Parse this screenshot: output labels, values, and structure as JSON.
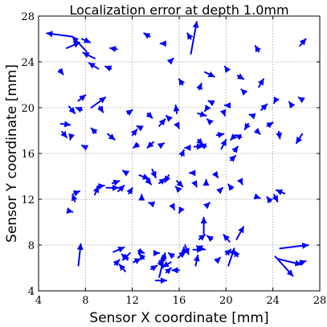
{
  "chart_data": {
    "type": "quiver",
    "title": "Localization error at depth 1.0mm",
    "xlabel": "Sensor X coordinate [mm]",
    "ylabel": "Sensor Y coordinate [mm]",
    "xlim": [
      4,
      28
    ],
    "ylim": [
      4,
      28
    ],
    "x_ticks": [
      4,
      8,
      12,
      16,
      20,
      24,
      28
    ],
    "y_ticks": [
      4,
      8,
      12,
      16,
      20,
      24,
      28
    ],
    "grid": true,
    "arrow_color": "#0000ff",
    "arrows": [
      {
        "x": 6.9,
        "y": 26.2,
        "u": -2.2,
        "v": 0.3
      },
      {
        "x": 6.4,
        "y": 25.2,
        "u": 1.1,
        "v": 0.5
      },
      {
        "x": 8.1,
        "y": 24.9,
        "u": -1.2,
        "v": 1.3
      },
      {
        "x": 7.7,
        "y": 26.0,
        "u": 0.7,
        "v": -0.3
      },
      {
        "x": 8.8,
        "y": 24.3,
        "u": -1.0,
        "v": 0.5
      },
      {
        "x": 5.8,
        "y": 23.3,
        "u": 0.3,
        "v": -0.4
      },
      {
        "x": 9.1,
        "y": 23.4,
        "u": -0.8,
        "v": 0.5
      },
      {
        "x": 10.2,
        "y": 23.4,
        "u": -0.5,
        "v": 0.2
      },
      {
        "x": 10.7,
        "y": 25.1,
        "u": -0.6,
        "v": 0.1
      },
      {
        "x": 14.5,
        "y": 25.6,
        "u": -0.1,
        "v": 0.0
      },
      {
        "x": 17.0,
        "y": 24.7,
        "u": 0.5,
        "v": 2.8
      },
      {
        "x": 17.0,
        "y": 26.0,
        "u": -0.3,
        "v": 0.5
      },
      {
        "x": 13.5,
        "y": 26.2,
        "u": -0.5,
        "v": 0.3
      },
      {
        "x": 16.3,
        "y": 22.0,
        "u": -0.3,
        "v": 0.5
      },
      {
        "x": 15.8,
        "y": 19.5,
        "u": -0.1,
        "v": 0.7
      },
      {
        "x": 15.3,
        "y": 24.1,
        "u": 0.2,
        "v": 0.2
      },
      {
        "x": 17.7,
        "y": 21.6,
        "u": 0.2,
        "v": 0.5
      },
      {
        "x": 18.2,
        "y": 23.1,
        "u": 0.8,
        "v": -0.4
      },
      {
        "x": 20.1,
        "y": 23.3,
        "u": -0.2,
        "v": 0.3
      },
      {
        "x": 21.0,
        "y": 22.8,
        "u": 0.5,
        "v": -0.3
      },
      {
        "x": 21.6,
        "y": 21.3,
        "u": -0.3,
        "v": 0.3
      },
      {
        "x": 22.8,
        "y": 24.9,
        "u": -0.3,
        "v": 0.5
      },
      {
        "x": 22.8,
        "y": 21.8,
        "u": 0.4,
        "v": 0.7
      },
      {
        "x": 26.3,
        "y": 25.4,
        "u": 0.5,
        "v": 0.6
      },
      {
        "x": 26.5,
        "y": 20.7,
        "u": -0.3,
        "v": 0.2
      },
      {
        "x": 25.6,
        "y": 20.2,
        "u": -0.2,
        "v": 0.3
      },
      {
        "x": 24.3,
        "y": 20.8,
        "u": -0.2,
        "v": -0.4
      },
      {
        "x": 24.5,
        "y": 17.9,
        "u": 0.1,
        "v": -0.6
      },
      {
        "x": 26.5,
        "y": 17.7,
        "u": -0.5,
        "v": -0.8
      },
      {
        "x": 23.0,
        "y": 19.8,
        "u": 0.5,
        "v": 0.5
      },
      {
        "x": 22.3,
        "y": 19.3,
        "u": -0.3,
        "v": 0.1
      },
      {
        "x": 21.9,
        "y": 18.6,
        "u": -0.3,
        "v": -0.5
      },
      {
        "x": 23.5,
        "y": 18.4,
        "u": 0.5,
        "v": 0.3
      },
      {
        "x": 22.6,
        "y": 18.0,
        "u": 0.3,
        "v": -0.3
      },
      {
        "x": 21.3,
        "y": 17.4,
        "u": -0.5,
        "v": 0.2
      },
      {
        "x": 20.8,
        "y": 17.6,
        "u": -0.4,
        "v": -0.4
      },
      {
        "x": 20.7,
        "y": 16.2,
        "u": 0.3,
        "v": 0.4
      },
      {
        "x": 20.4,
        "y": 15.4,
        "u": 0.4,
        "v": 0.4
      },
      {
        "x": 19.6,
        "y": 16.4,
        "u": 0.4,
        "v": 0.8
      },
      {
        "x": 19.2,
        "y": 17.6,
        "u": 0.6,
        "v": 0.1
      },
      {
        "x": 18.6,
        "y": 18.8,
        "u": -0.2,
        "v": 0.2
      },
      {
        "x": 17.6,
        "y": 19.5,
        "u": 0.7,
        "v": -0.2
      },
      {
        "x": 18.4,
        "y": 20.0,
        "u": -0.2,
        "v": -0.3
      },
      {
        "x": 19.8,
        "y": 19.6,
        "u": 0.1,
        "v": -0.3
      },
      {
        "x": 20.2,
        "y": 20.2,
        "u": -0.3,
        "v": 0.0
      },
      {
        "x": 18.9,
        "y": 20.4,
        "u": -0.4,
        "v": 0.2
      },
      {
        "x": 17.3,
        "y": 16.6,
        "u": 0.7,
        "v": 0.0
      },
      {
        "x": 18.3,
        "y": 16.6,
        "u": -0.5,
        "v": 0.2
      },
      {
        "x": 16.8,
        "y": 16.5,
        "u": -0.3,
        "v": 0.0
      },
      {
        "x": 16.2,
        "y": 15.8,
        "u": 0.2,
        "v": 0.5
      },
      {
        "x": 17.0,
        "y": 14.3,
        "u": -0.1,
        "v": 0.0
      },
      {
        "x": 17.6,
        "y": 17.2,
        "u": 0.4,
        "v": -0.4
      },
      {
        "x": 15.8,
        "y": 18.6,
        "u": 0.2,
        "v": -0.4
      },
      {
        "x": 15.2,
        "y": 19.0,
        "u": -0.3,
        "v": 0.3
      },
      {
        "x": 14.3,
        "y": 18.4,
        "u": 0.5,
        "v": 0.6
      },
      {
        "x": 13.3,
        "y": 19.5,
        "u": 0.4,
        "v": -0.4
      },
      {
        "x": 12.8,
        "y": 18.2,
        "u": -0.4,
        "v": 0.2
      },
      {
        "x": 12.0,
        "y": 17.6,
        "u": 0.4,
        "v": 0.5
      },
      {
        "x": 11.6,
        "y": 19.5,
        "u": 0.4,
        "v": 0.3
      },
      {
        "x": 13.8,
        "y": 17.0,
        "u": -0.5,
        "v": -0.5
      },
      {
        "x": 12.5,
        "y": 16.8,
        "u": -0.4,
        "v": -0.3
      },
      {
        "x": 14.4,
        "y": 16.7,
        "u": 0.3,
        "v": 0.2
      },
      {
        "x": 8.5,
        "y": 20.0,
        "u": 1.2,
        "v": 0.9
      },
      {
        "x": 9.2,
        "y": 20.1,
        "u": 0.3,
        "v": -0.5
      },
      {
        "x": 7.4,
        "y": 20.6,
        "u": 0.6,
        "v": 0.5
      },
      {
        "x": 7.7,
        "y": 19.8,
        "u": -0.5,
        "v": 0.2
      },
      {
        "x": 6.6,
        "y": 20.1,
        "u": 0.5,
        "v": -0.6
      },
      {
        "x": 5.9,
        "y": 18.6,
        "u": 0.8,
        "v": -0.1
      },
      {
        "x": 6.0,
        "y": 17.9,
        "u": 0.4,
        "v": -0.5
      },
      {
        "x": 6.8,
        "y": 17.6,
        "u": -0.1,
        "v": -0.4
      },
      {
        "x": 7.9,
        "y": 16.6,
        "u": -0.2,
        "v": 0.1
      },
      {
        "x": 8.9,
        "y": 17.8,
        "u": -0.4,
        "v": 0.4
      },
      {
        "x": 9.9,
        "y": 17.7,
        "u": 0.6,
        "v": -0.5
      },
      {
        "x": 13.7,
        "y": 14.6,
        "u": 0.3,
        "v": -0.7
      },
      {
        "x": 12.6,
        "y": 14.1,
        "u": 0.8,
        "v": -0.3
      },
      {
        "x": 11.5,
        "y": 14.3,
        "u": -0.3,
        "v": 0.2
      },
      {
        "x": 13.2,
        "y": 13.8,
        "u": 0.4,
        "v": -0.5
      },
      {
        "x": 15.1,
        "y": 14.1,
        "u": -0.3,
        "v": -0.6
      },
      {
        "x": 14.3,
        "y": 13.4,
        "u": 0.5,
        "v": 0.4
      },
      {
        "x": 15.8,
        "y": 13.6,
        "u": 0.5,
        "v": -0.5
      },
      {
        "x": 10.3,
        "y": 13.4,
        "u": 0.6,
        "v": 0.2
      },
      {
        "x": 9.8,
        "y": 13.0,
        "u": 1.0,
        "v": 0.0
      },
      {
        "x": 9.0,
        "y": 13.1,
        "u": 0.6,
        "v": 0.1
      },
      {
        "x": 10.8,
        "y": 12.7,
        "u": 0.5,
        "v": 0.5
      },
      {
        "x": 8.8,
        "y": 12.4,
        "u": 0.3,
        "v": 0.7
      },
      {
        "x": 11.7,
        "y": 12.5,
        "u": 0.3,
        "v": 0.5
      },
      {
        "x": 7.0,
        "y": 12.5,
        "u": 0.5,
        "v": 0.2
      },
      {
        "x": 7.1,
        "y": 11.8,
        "u": -0.2,
        "v": 0.6
      },
      {
        "x": 6.5,
        "y": 11.0,
        "u": 0.4,
        "v": -0.1
      },
      {
        "x": 12.8,
        "y": 12.1,
        "u": 0.0,
        "v": 0.3
      },
      {
        "x": 13.7,
        "y": 11.6,
        "u": -0.3,
        "v": 0.1
      },
      {
        "x": 15.4,
        "y": 11.5,
        "u": 0.2,
        "v": -0.4
      },
      {
        "x": 16.0,
        "y": 12.8,
        "u": -0.3,
        "v": 0.3
      },
      {
        "x": 17.3,
        "y": 13.5,
        "u": 0.2,
        "v": -0.4
      },
      {
        "x": 18.3,
        "y": 13.4,
        "u": 0.0,
        "v": 0.3
      },
      {
        "x": 19.1,
        "y": 14.2,
        "u": 0.2,
        "v": -0.3
      },
      {
        "x": 20.5,
        "y": 12.9,
        "u": -0.3,
        "v": 0.4
      },
      {
        "x": 21.3,
        "y": 13.5,
        "u": 0.1,
        "v": -0.2
      },
      {
        "x": 19.4,
        "y": 12.7,
        "u": 0.3,
        "v": 0.3
      },
      {
        "x": 16.2,
        "y": 11.2,
        "u": -0.2,
        "v": -0.4
      },
      {
        "x": 18.3,
        "y": 11.4,
        "u": 0.3,
        "v": 0.3
      },
      {
        "x": 22.6,
        "y": 12.2,
        "u": 0.3,
        "v": -0.1
      },
      {
        "x": 23.8,
        "y": 11.8,
        "u": -0.3,
        "v": 0.4
      },
      {
        "x": 25.0,
        "y": 12.5,
        "u": -0.7,
        "v": 0.3
      },
      {
        "x": 24.1,
        "y": 12.4,
        "u": 0.3,
        "v": -0.6
      },
      {
        "x": 7.4,
        "y": 6.2,
        "u": 0.2,
        "v": 1.9
      },
      {
        "x": 10.4,
        "y": 7.4,
        "u": 0.9,
        "v": 0.4
      },
      {
        "x": 11.6,
        "y": 6.7,
        "u": -0.5,
        "v": 0.5
      },
      {
        "x": 12.5,
        "y": 7.5,
        "u": 0.5,
        "v": -0.2
      },
      {
        "x": 11.8,
        "y": 7.3,
        "u": -0.6,
        "v": -0.6
      },
      {
        "x": 12.1,
        "y": 6.5,
        "u": 0.6,
        "v": 0.3
      },
      {
        "x": 13.0,
        "y": 6.8,
        "u": -0.4,
        "v": 0.4
      },
      {
        "x": 10.5,
        "y": 6.3,
        "u": 0.4,
        "v": 0.4
      },
      {
        "x": 11.4,
        "y": 5.7,
        "u": -0.5,
        "v": 0.6
      },
      {
        "x": 13.6,
        "y": 5.9,
        "u": 0.5,
        "v": 0.3
      },
      {
        "x": 14.0,
        "y": 7.3,
        "u": 0.3,
        "v": 0.0
      },
      {
        "x": 14.3,
        "y": 6.6,
        "u": 0.3,
        "v": -0.5
      },
      {
        "x": 14.6,
        "y": 6.0,
        "u": 0.0,
        "v": 1.1
      },
      {
        "x": 14.3,
        "y": 5.2,
        "u": 0.5,
        "v": 2.1
      },
      {
        "x": 14.9,
        "y": 5.6,
        "u": 0.4,
        "v": 0.4
      },
      {
        "x": 14.0,
        "y": 4.9,
        "u": 0.9,
        "v": 0.0
      },
      {
        "x": 15.3,
        "y": 6.5,
        "u": -0.7,
        "v": -0.4
      },
      {
        "x": 15.5,
        "y": 7.0,
        "u": -0.4,
        "v": 0.3
      },
      {
        "x": 16.0,
        "y": 5.8,
        "u": -0.6,
        "v": 0.0
      },
      {
        "x": 15.9,
        "y": 6.9,
        "u": 0.6,
        "v": 0.5
      },
      {
        "x": 16.4,
        "y": 7.2,
        "u": 0.0,
        "v": 0.6
      },
      {
        "x": 16.5,
        "y": 8.0,
        "u": 0.3,
        "v": -0.8
      },
      {
        "x": 17.2,
        "y": 7.6,
        "u": 0.8,
        "v": 0.0
      },
      {
        "x": 18.2,
        "y": 7.6,
        "u": -0.7,
        "v": 0.3
      },
      {
        "x": 17.7,
        "y": 8.5,
        "u": 0.5,
        "v": 0.4
      },
      {
        "x": 17.4,
        "y": 6.2,
        "u": 0.2,
        "v": 0.9
      },
      {
        "x": 18.1,
        "y": 9.0,
        "u": 0.0,
        "v": 1.4
      },
      {
        "x": 18.8,
        "y": 8.5,
        "u": -0.4,
        "v": 0.3
      },
      {
        "x": 20.2,
        "y": 6.2,
        "u": 0.5,
        "v": 1.5
      },
      {
        "x": 20.0,
        "y": 7.2,
        "u": 0.4,
        "v": 0.4
      },
      {
        "x": 20.9,
        "y": 8.5,
        "u": 0.6,
        "v": 1.1
      },
      {
        "x": 20.3,
        "y": 8.3,
        "u": -0.5,
        "v": 0.6
      },
      {
        "x": 21.0,
        "y": 7.0,
        "u": -0.3,
        "v": 0.5
      },
      {
        "x": 19.2,
        "y": 6.6,
        "u": 0.3,
        "v": 0.3
      },
      {
        "x": 24.6,
        "y": 7.7,
        "u": 2.4,
        "v": 0.3
      },
      {
        "x": 24.4,
        "y": 6.8,
        "u": 2.0,
        "v": -0.5
      },
      {
        "x": 24.2,
        "y": 7.0,
        "u": 1.5,
        "v": -1.7
      },
      {
        "x": 26.2,
        "y": 6.4,
        "u": 0.6,
        "v": 0.2
      }
    ]
  }
}
